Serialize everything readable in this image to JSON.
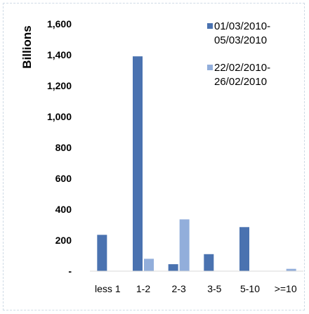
{
  "chart_data": {
    "type": "bar",
    "ylabel": "Billions",
    "xlabel": "",
    "title": "",
    "categories": [
      "less 1",
      "1-2",
      "2-3",
      "3-5",
      "5-10",
      ">=10"
    ],
    "y_ticks": [
      "-",
      "200",
      "400",
      "600",
      "800",
      "1,000",
      "1,200",
      "1,400",
      "1,600"
    ],
    "ylim": [
      0,
      1600
    ],
    "grid": false,
    "legend_position": "top-right",
    "series": [
      {
        "name": "01/03/2010-05/03/2010",
        "legend_lines": [
          "01/03/2010-",
          "05/03/2010"
        ],
        "color": "#4a72b0",
        "values": [
          235,
          1390,
          45,
          110,
          285,
          0
        ]
      },
      {
        "name": "22/02/2010-26/02/2010",
        "legend_lines": [
          "22/02/2010-",
          "26/02/2010"
        ],
        "color": "#92aedb",
        "values": [
          0,
          80,
          335,
          0,
          0,
          15
        ]
      }
    ]
  }
}
